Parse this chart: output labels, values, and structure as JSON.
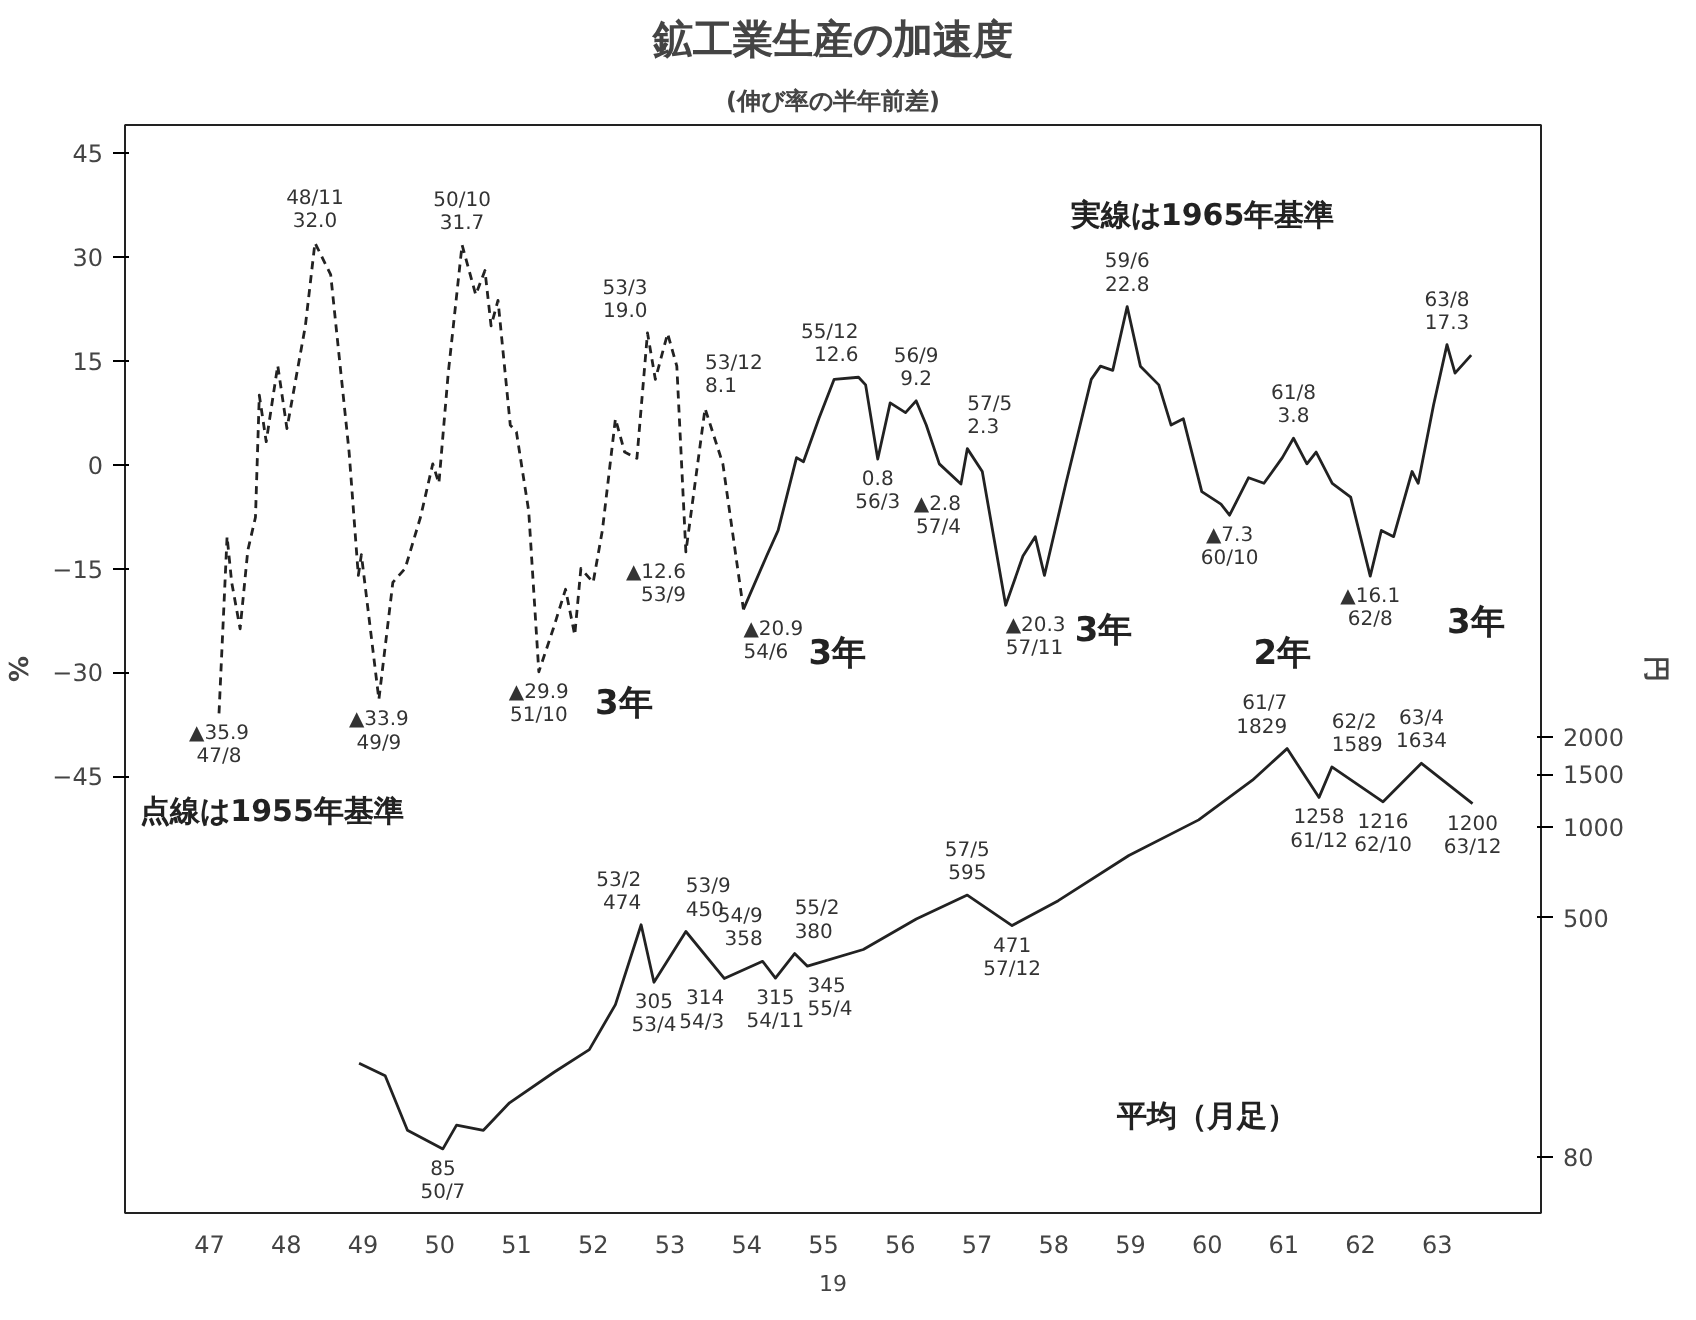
{
  "chart_data": {
    "type": "line",
    "title": "鉱工業生産の加速度",
    "subtitle": "(伸び率の半年前差)",
    "ylabel": "%",
    "y2label": "円",
    "xlim": [
      46.4,
      64.85
    ],
    "xticks": [
      {
        "value": 47.5,
        "label": "47"
      },
      {
        "value": 48.5,
        "label": "48"
      },
      {
        "value": 49.5,
        "label": "49"
      },
      {
        "value": 50.5,
        "label": "50"
      },
      {
        "value": 51.5,
        "label": "51"
      },
      {
        "value": 52.5,
        "label": "52"
      },
      {
        "value": 53.5,
        "label": "53"
      },
      {
        "value": 54.5,
        "label": "54"
      },
      {
        "value": 55.5,
        "label": "55"
      },
      {
        "value": 56.5,
        "label": "56"
      },
      {
        "value": 57.5,
        "label": "57"
      },
      {
        "value": 58.5,
        "label": "58"
      },
      {
        "value": 59.5,
        "label": "59"
      },
      {
        "value": 60.5,
        "label": "60"
      },
      {
        "value": 61.5,
        "label": "61"
      },
      {
        "value": 62.5,
        "label": "62"
      },
      {
        "value": 63.5,
        "label": "63"
      }
    ],
    "ylim": [
      -108,
      49
    ],
    "yticks": [
      45,
      30,
      15,
      0,
      -15,
      -30,
      -45
    ],
    "y2lim": [
      52,
      218000
    ],
    "y2ticks": [
      80,
      500,
      1000,
      1500,
      2000
    ],
    "log": "y2",
    "series": [
      {
        "color": "#222222",
        "line_style": "dashed",
        "x": [
          47.625,
          47.73,
          47.79,
          47.9,
          48.0,
          48.1,
          48.15,
          48.24,
          48.39,
          48.51,
          48.75,
          48.875,
          49.08,
          49.32,
          49.44,
          49.48,
          49.708,
          49.89,
          50.05,
          50.25,
          50.41,
          50.49,
          50.61,
          50.792,
          50.97,
          51.09,
          51.17,
          51.26,
          51.42,
          51.5,
          51.66,
          51.792,
          51.98,
          52.14,
          52.26,
          52.34,
          52.5,
          52.62,
          52.79,
          52.91,
          53.07,
          53.208,
          53.31,
          53.47,
          53.59,
          53.708,
          53.958,
          54.19,
          54.458
        ],
        "values": [
          -35.9,
          -10.4,
          -17,
          -23.7,
          -12.4,
          -7.6,
          10,
          3.3,
          14.3,
          5.2,
          20,
          32.0,
          27.4,
          1.8,
          -16,
          -13,
          -33.9,
          -17,
          -15,
          -7.6,
          0.1,
          -2.7,
          13,
          31.7,
          24.5,
          28,
          20,
          23.7,
          5.7,
          4.7,
          -6.7,
          -29.9,
          -23.7,
          -18,
          -24.6,
          -15,
          -17,
          -9.5,
          6.6,
          1.8,
          0.9,
          19.0,
          12.3,
          18.9,
          14.2,
          -12.6,
          8.1,
          0.1,
          -20.9
        ],
        "value_labels": [
          "▲35.9\n47/8",
          null,
          null,
          null,
          null,
          null,
          null,
          null,
          null,
          null,
          null,
          "48/11\n32.0",
          null,
          null,
          null,
          null,
          "▲33.9\n49/9",
          null,
          null,
          null,
          null,
          null,
          null,
          "50/10\n31.7",
          null,
          null,
          null,
          null,
          null,
          null,
          null,
          "▲29.9\n51/10",
          null,
          null,
          null,
          null,
          null,
          null,
          null,
          null,
          null,
          "53/3\n19.0",
          null,
          null,
          null,
          "▲12.6\n53/9",
          "53/12\n8.1",
          null,
          "▲20.9\n54/6"
        ]
      },
      {
        "color": "#222222",
        "line_style": "solid",
        "x": [
          54.458,
          54.76,
          54.91,
          55.15,
          55.24,
          55.44,
          55.64,
          55.958,
          56.05,
          56.208,
          56.37,
          56.57,
          56.708,
          56.84,
          57.01,
          57.292,
          57.375,
          57.57,
          57.875,
          58.1,
          58.26,
          58.38,
          58.66,
          58.99,
          59.11,
          59.27,
          59.458,
          59.63,
          59.87,
          60.03,
          60.19,
          60.43,
          60.68,
          60.792,
          61.04,
          61.24,
          61.48,
          61.625,
          61.8,
          61.92,
          62.13,
          62.37,
          62.625,
          62.77,
          62.93,
          63.17,
          63.25,
          63.45,
          63.625,
          63.73,
          63.94
        ],
        "values": [
          -20.9,
          -13.2,
          -9.5,
          1,
          0.4,
          6.6,
          12.3,
          12.6,
          11.5,
          0.8,
          8.9,
          7.5,
          9.2,
          5.7,
          0.1,
          -2.8,
          2.3,
          -1,
          -20.3,
          -13.2,
          -10.4,
          -16,
          -2.7,
          12.3,
          14.2,
          13.6,
          22.8,
          14.2,
          11.5,
          5.7,
          6.6,
          -3.9,
          -5.7,
          -7.3,
          -1.9,
          -2.7,
          1,
          3.8,
          0.1,
          1.8,
          -2.7,
          -4.7,
          -16.1,
          -9.5,
          -10.4,
          -1,
          -2.7,
          8.6,
          17.3,
          13.2,
          15.8
        ],
        "value_labels": [
          null,
          null,
          null,
          null,
          null,
          null,
          null,
          "55/12\n12.6",
          null,
          "0.8\n56/3",
          null,
          null,
          "56/9\n9.2",
          null,
          null,
          "▲2.8\n57/4",
          "57/5\n2.3",
          null,
          "▲20.3\n57/11",
          null,
          null,
          null,
          null,
          null,
          null,
          null,
          "59/6\n22.8",
          null,
          null,
          null,
          null,
          null,
          null,
          "▲7.3\n60/10",
          null,
          null,
          null,
          "61/8\n3.8",
          null,
          null,
          null,
          null,
          "▲16.1\n62/8",
          null,
          null,
          null,
          null,
          null,
          "63/8\n17.3",
          null,
          null
        ]
      },
      {
        "color": "#222222",
        "line_style": "solid",
        "axis": "y2",
        "x": [
          49.45,
          49.79,
          50.08,
          50.542,
          50.72,
          51.07,
          51.41,
          51.99,
          52.45,
          52.79,
          53.125,
          53.292,
          53.708,
          54.208,
          54.708,
          54.875,
          55.125,
          55.292,
          56.02,
          56.71,
          57.375,
          57.958,
          58.56,
          59.48,
          60.39,
          61.09,
          61.542,
          61.958,
          62.125,
          62.792,
          63.292,
          63.958
        ],
        "values": [
          164,
          149,
          98,
          85,
          102,
          98,
          121,
          153,
          182,
          257,
          474,
          305,
          450,
          314,
          358,
          315,
          380,
          345,
          392,
          495,
          595,
          471,
          570,
          806,
          1059,
          1435,
          1829,
          1258,
          1589,
          1216,
          1634,
          1200
        ],
        "value_labels": [
          null,
          null,
          null,
          "85\n50/7",
          null,
          null,
          null,
          null,
          null,
          null,
          "53/2\n474",
          "305\n53/4",
          "53/9\n450",
          "314\n54/3",
          "54/9\n358",
          "315\n54/11",
          "55/2\n380",
          "345\n55/4",
          null,
          null,
          "57/5\n595",
          "471\n57/12",
          null,
          null,
          null,
          null,
          "61/7\n1829",
          "1258\n61/12",
          "62/2\n1589",
          "1216\n62/10",
          "63/4\n1634",
          "1200\n63/12"
        ]
      }
    ],
    "annotations": [
      "実線は1965年基準",
      "点線は1955年基準",
      "3年",
      "3年",
      "3年",
      "2年",
      "3年",
      "平均（月足）",
      "19"
    ]
  }
}
